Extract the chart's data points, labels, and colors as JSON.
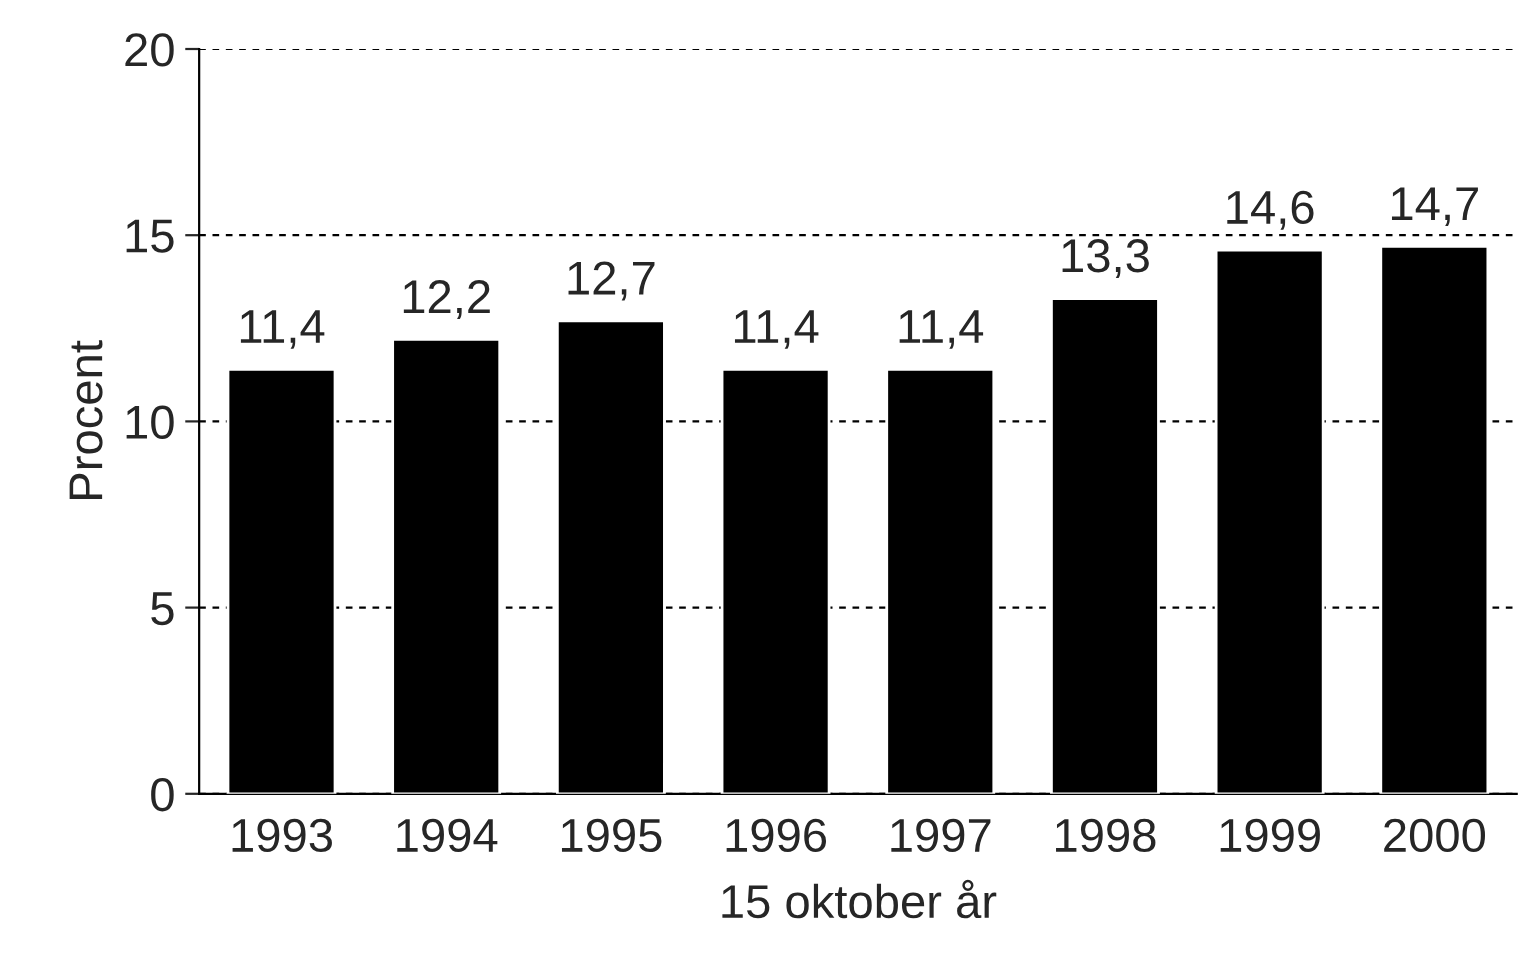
{
  "chart_data": {
    "type": "bar",
    "xlabel": "15 oktober år",
    "ylabel": "Procent",
    "categories": [
      "1993",
      "1994",
      "1995",
      "1996",
      "1997",
      "1998",
      "1999",
      "2000"
    ],
    "values": [
      11.4,
      12.2,
      12.7,
      11.4,
      11.4,
      13.3,
      14.6,
      14.7
    ],
    "value_labels": [
      "11,4",
      "12,2",
      "12,7",
      "11,4",
      "11,4",
      "13,3",
      "14,6",
      "14,7"
    ],
    "color": "#000000",
    "ylim": [
      0,
      20
    ],
    "yticks": [
      0,
      5,
      10,
      15,
      20
    ],
    "grid": "y"
  }
}
